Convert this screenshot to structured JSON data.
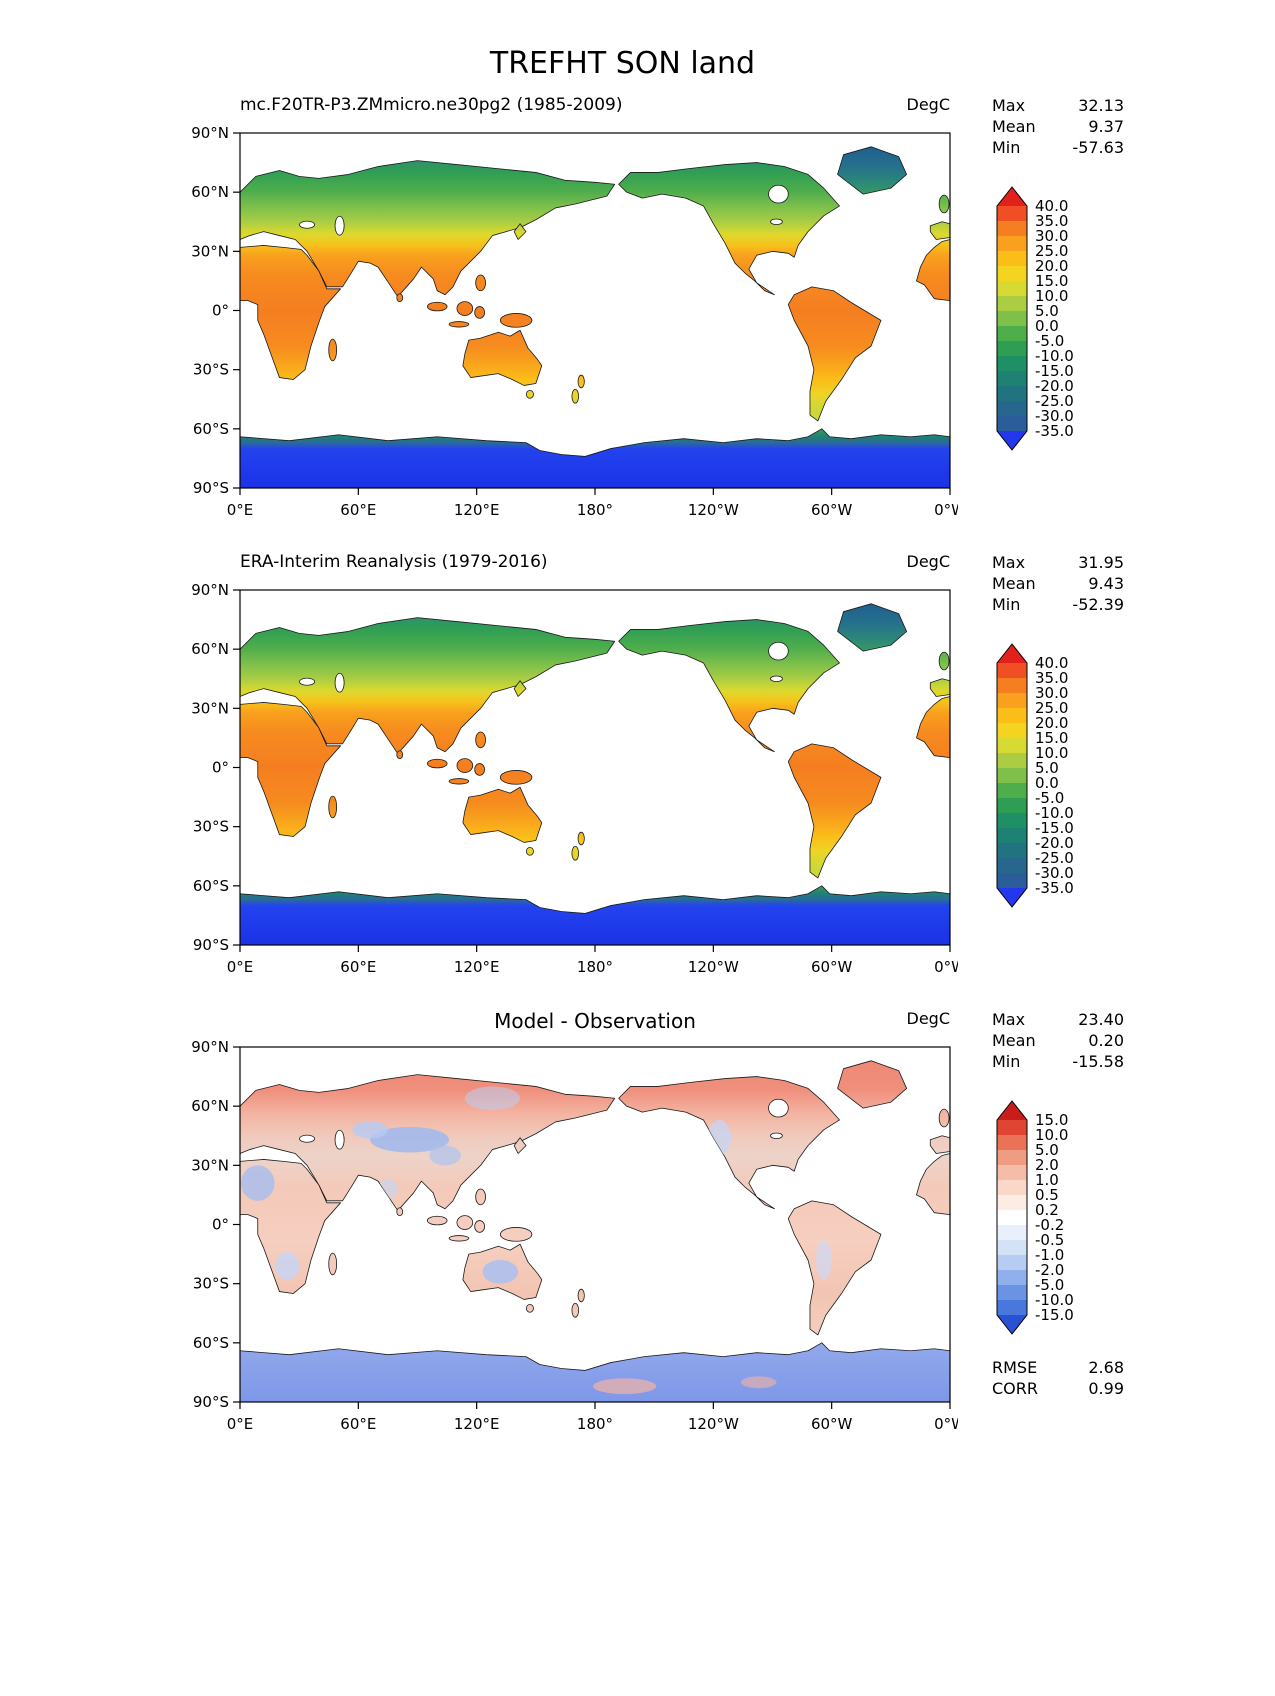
{
  "title": "TREFHT SON land",
  "axes": {
    "y_ticks": [
      "90°N",
      "60°N",
      "30°N",
      "0°",
      "30°S",
      "60°S",
      "90°S"
    ],
    "x_ticks": [
      "0°E",
      "60°E",
      "120°E",
      "180°",
      "120°W",
      "60°W",
      "0°W"
    ]
  },
  "panels": [
    {
      "title": "mc.F20TR-P3.ZMmicro.ne30pg2 (1985-2009)",
      "units": "DegC",
      "stats": {
        "max_label": "Max",
        "max_value": "32.13",
        "mean_label": "Mean",
        "mean_value": "9.37",
        "min_label": "Min",
        "min_value": "-57.63"
      },
      "colorbar": {
        "tick_labels": [
          "40.0",
          "35.0",
          "30.0",
          "25.0",
          "20.0",
          "15.0",
          "10.0",
          "5.0",
          "0.0",
          "-5.0",
          "-10.0",
          "-15.0",
          "-20.0",
          "-25.0",
          "-30.0",
          "-35.0"
        ],
        "colors": [
          "#e2211c",
          "#ef4f23",
          "#f57e20",
          "#f9a11e",
          "#fbbd18",
          "#f4d420",
          "#d7da33",
          "#aacd43",
          "#7fc04b",
          "#4fae4c",
          "#2f9e54",
          "#1f9066",
          "#1e8174",
          "#20737f",
          "#27678e",
          "#2b5d9b",
          "#2337ec"
        ]
      }
    },
    {
      "title": "ERA-Interim Reanalysis (1979-2016)",
      "units": "DegC",
      "stats": {
        "max_label": "Max",
        "max_value": "31.95",
        "mean_label": "Mean",
        "mean_value": "9.43",
        "min_label": "Min",
        "min_value": "-52.39"
      },
      "colorbar": {
        "tick_labels": [
          "40.0",
          "35.0",
          "30.0",
          "25.0",
          "20.0",
          "15.0",
          "10.0",
          "5.0",
          "0.0",
          "-5.0",
          "-10.0",
          "-15.0",
          "-20.0",
          "-25.0",
          "-30.0",
          "-35.0"
        ],
        "colors": [
          "#e2211c",
          "#ef4f23",
          "#f57e20",
          "#f9a11e",
          "#fbbd18",
          "#f4d420",
          "#d7da33",
          "#aacd43",
          "#7fc04b",
          "#4fae4c",
          "#2f9e54",
          "#1f9066",
          "#1e8174",
          "#20737f",
          "#27678e",
          "#2b5d9b",
          "#2337ec"
        ]
      }
    },
    {
      "title": "Model - Observation",
      "units": "DegC",
      "stats": {
        "max_label": "Max",
        "max_value": "23.40",
        "mean_label": "Mean",
        "mean_value": "0.20",
        "min_label": "Min",
        "min_value": "-15.58"
      },
      "colorbar": {
        "tick_labels": [
          "15.0",
          "10.0",
          "5.0",
          "2.0",
          "1.0",
          "0.5",
          "0.2",
          "-0.2",
          "-0.5",
          "-1.0",
          "-2.0",
          "-5.0",
          "-10.0",
          "-15.0"
        ],
        "colors": [
          "#c81e1b",
          "#e04432",
          "#ea7257",
          "#f09c82",
          "#f5bda9",
          "#f9d8ca",
          "#fcece4",
          "#ffffff",
          "#e9effb",
          "#d4e2f8",
          "#b6ccf3",
          "#8fb0ec",
          "#6b93e4",
          "#4a77dc",
          "#2a50d4"
        ]
      },
      "metrics": {
        "rmse_label": "RMSE",
        "rmse_value": "2.68",
        "corr_label": "CORR",
        "corr_value": "0.99"
      }
    }
  ],
  "chart_data": [
    {
      "type": "heatmap",
      "subtype": "global-land-temperature-map",
      "figure_title": "TREFHT SON land",
      "title": "mc.F20TR-P3.ZMmicro.ne30pg2 (1985-2009)",
      "units": "DegC",
      "stats": {
        "max": 32.13,
        "mean": 9.37,
        "min": -57.63
      },
      "colorbar_levels": [
        40.0,
        35.0,
        30.0,
        25.0,
        20.0,
        15.0,
        10.0,
        5.0,
        0.0,
        -5.0,
        -10.0,
        -15.0,
        -20.0,
        -25.0,
        -30.0,
        -35.0
      ],
      "x_axis": {
        "tick_labels": [
          "0°E",
          "60°E",
          "120°E",
          "180°",
          "120°W",
          "60°W",
          "0°W"
        ],
        "range_deg_lon": [
          0,
          360
        ]
      },
      "y_axis": {
        "tick_labels": [
          "90°N",
          "60°N",
          "30°N",
          "0°",
          "30°S",
          "60°S",
          "90°S"
        ],
        "range_deg_lat": [
          -90,
          90
        ]
      },
      "masking": "land only, ocean white",
      "palette": "rainbow red-to-blue"
    },
    {
      "type": "heatmap",
      "subtype": "global-land-temperature-map",
      "title": "ERA-Interim Reanalysis (1979-2016)",
      "units": "DegC",
      "stats": {
        "max": 31.95,
        "mean": 9.43,
        "min": -52.39
      },
      "colorbar_levels": [
        40.0,
        35.0,
        30.0,
        25.0,
        20.0,
        15.0,
        10.0,
        5.0,
        0.0,
        -5.0,
        -10.0,
        -15.0,
        -20.0,
        -25.0,
        -30.0,
        -35.0
      ],
      "x_axis": {
        "tick_labels": [
          "0°E",
          "60°E",
          "120°E",
          "180°",
          "120°W",
          "60°W",
          "0°W"
        ],
        "range_deg_lon": [
          0,
          360
        ]
      },
      "y_axis": {
        "tick_labels": [
          "90°N",
          "60°N",
          "30°N",
          "0°",
          "30°S",
          "60°S",
          "90°S"
        ],
        "range_deg_lat": [
          -90,
          90
        ]
      },
      "masking": "land only, ocean white",
      "palette": "rainbow red-to-blue"
    },
    {
      "type": "heatmap",
      "subtype": "difference-map",
      "title": "Model - Observation",
      "units": "DegC",
      "stats": {
        "max": 23.4,
        "mean": 0.2,
        "min": -15.58
      },
      "rmse": 2.68,
      "corr": 0.99,
      "colorbar_levels": [
        15.0,
        10.0,
        5.0,
        2.0,
        1.0,
        0.5,
        0.2,
        -0.2,
        -0.5,
        -1.0,
        -2.0,
        -5.0,
        -10.0,
        -15.0
      ],
      "x_axis": {
        "tick_labels": [
          "0°E",
          "60°E",
          "120°E",
          "180°",
          "120°W",
          "60°W",
          "0°W"
        ],
        "range_deg_lon": [
          0,
          360
        ]
      },
      "y_axis": {
        "tick_labels": [
          "90°N",
          "60°N",
          "30°N",
          "0°",
          "30°S",
          "60°S",
          "90°S"
        ],
        "range_deg_lat": [
          -90,
          90
        ]
      },
      "masking": "land only, ocean white",
      "palette": "diverging red-white-blue"
    }
  ]
}
